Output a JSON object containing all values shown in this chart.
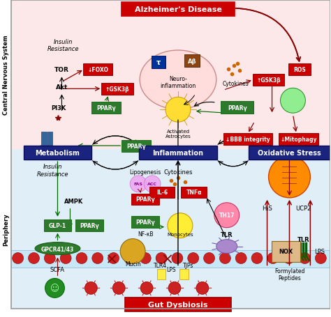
{
  "title": "Alzheimer's Disease",
  "bg_cns": "#fce8e8",
  "bg_periphery": "#e0eef8",
  "cns_label": "Central Nervous System",
  "periphery_label": "Periphery",
  "gut_dysbiosis_label": "Gut Dysbiosis"
}
